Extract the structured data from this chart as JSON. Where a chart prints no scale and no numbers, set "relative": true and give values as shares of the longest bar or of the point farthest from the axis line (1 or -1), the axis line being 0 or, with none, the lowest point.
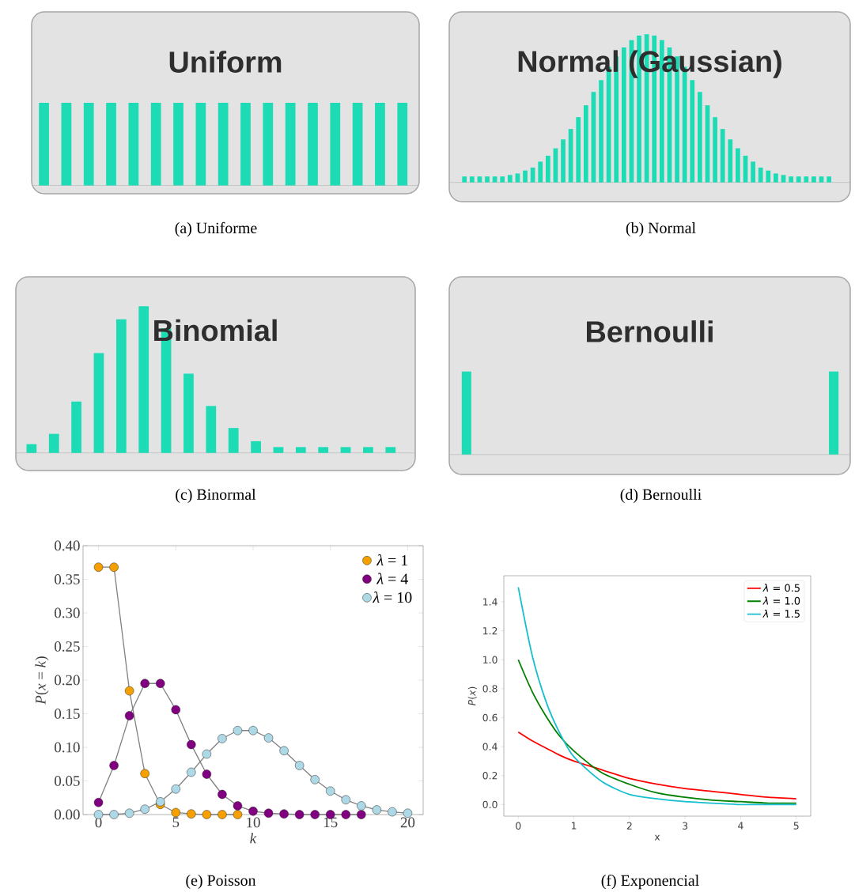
{
  "chart_data": [
    {
      "type": "bar",
      "relative": true,
      "title": "Uniform",
      "categories": [
        null,
        null,
        null,
        null,
        null,
        null,
        null,
        null,
        null,
        null,
        null,
        null,
        null,
        null,
        null,
        null,
        null
      ],
      "values": [
        1,
        1,
        1,
        1,
        1,
        1,
        1,
        1,
        1,
        1,
        1,
        1,
        1,
        1,
        1,
        1,
        1
      ],
      "color": "#1ddcb5",
      "annotations": [
        "(a) Uniforme"
      ]
    },
    {
      "type": "bar",
      "relative": true,
      "title": "Normal (Gaussian)",
      "categories": [
        null,
        null,
        null,
        null,
        null,
        null,
        null,
        null,
        null,
        null,
        null,
        null,
        null,
        null,
        null,
        null,
        null,
        null,
        null,
        null,
        null,
        null,
        null,
        null,
        null,
        null,
        null,
        null,
        null,
        null,
        null,
        null,
        null,
        null,
        null,
        null,
        null,
        null,
        null,
        null,
        null,
        null,
        null,
        null,
        null,
        null,
        null,
        null,
        null
      ],
      "values": [
        0.04,
        0.04,
        0.04,
        0.04,
        0.04,
        0.04,
        0.05,
        0.06,
        0.08,
        0.1,
        0.14,
        0.18,
        0.23,
        0.29,
        0.36,
        0.44,
        0.52,
        0.61,
        0.69,
        0.78,
        0.85,
        0.91,
        0.96,
        0.99,
        1,
        0.99,
        0.96,
        0.91,
        0.85,
        0.78,
        0.69,
        0.61,
        0.52,
        0.44,
        0.36,
        0.29,
        0.23,
        0.18,
        0.14,
        0.1,
        0.08,
        0.06,
        0.05,
        0.04,
        0.04,
        0.04,
        0.04,
        0.04,
        0.04
      ],
      "color": "#1ddcb5",
      "annotations": [
        "(b) Normal"
      ]
    },
    {
      "type": "bar",
      "relative": true,
      "title": "Binomial",
      "categories": [
        null,
        null,
        null,
        null,
        null,
        null,
        null,
        null,
        null,
        null,
        null,
        null,
        null,
        null,
        null,
        null,
        null
      ],
      "values": [
        0.06,
        0.13,
        0.35,
        0.68,
        0.91,
        1,
        0.85,
        0.54,
        0.32,
        0.17,
        0.08,
        0.04,
        0.04,
        0.04,
        0.04,
        0.04,
        0.04
      ],
      "color": "#1ddcb5",
      "annotations": [
        "(c) Binormal"
      ]
    },
    {
      "type": "bar",
      "relative": true,
      "title": "Bernoulli",
      "categories": [
        null,
        null
      ],
      "values": [
        1,
        1
      ],
      "color": "#1ddcb5",
      "annotations": [
        "(d) Bernoulli"
      ]
    },
    {
      "type": "line",
      "xlabel": "*k*",
      "ylabel": "*P*(*x* = *k*)",
      "x": [
        0,
        1,
        2,
        3,
        4,
        5,
        6,
        7,
        8,
        9,
        10,
        11,
        12,
        13,
        14,
        15,
        16,
        17,
        18,
        19,
        20
      ],
      "marker": "circle",
      "legend": "top right",
      "xlim": [
        -1,
        21
      ],
      "ylim": [
        0,
        0.4
      ],
      "xticks": [
        0,
        5,
        10,
        15,
        20
      ],
      "yticks": [
        {
          "value": 0,
          "label": "0.00"
        },
        {
          "value": 0.05,
          "label": "0.05"
        },
        {
          "value": 0.1,
          "label": "0.10"
        },
        {
          "value": 0.15,
          "label": "0.15"
        },
        {
          "value": 0.2,
          "label": "0.20"
        },
        {
          "value": 0.25,
          "label": "0.25"
        },
        {
          "value": 0.3,
          "label": "0.30"
        },
        {
          "value": 0.35,
          "label": "0.35"
        },
        {
          "value": 0.4,
          "label": "0.40"
        }
      ],
      "series": [
        {
          "name": "*λ* = 1",
          "color": "#f5a000",
          "x": [
            0,
            1,
            2,
            3,
            4,
            5,
            6,
            7,
            8,
            9
          ],
          "values": [
            0.368,
            0.368,
            0.184,
            0.061,
            0.015,
            0.003,
            0.001,
            0,
            0,
            0
          ]
        },
        {
          "name": "*λ* = 4",
          "color": "#800080",
          "x": [
            0,
            1,
            2,
            3,
            4,
            5,
            6,
            7,
            8,
            9,
            10,
            11,
            12,
            13,
            14,
            15,
            16,
            17
          ],
          "values": [
            0.018,
            0.073,
            0.147,
            0.195,
            0.195,
            0.156,
            0.104,
            0.06,
            0.03,
            0.013,
            0.005,
            0.002,
            0.001,
            0,
            0,
            0,
            0,
            0
          ]
        },
        {
          "name": "*λ* = 10",
          "color": "#add8e6",
          "values": [
            0,
            0,
            0.002,
            0.008,
            0.019,
            0.038,
            0.063,
            0.09,
            0.113,
            0.125,
            0.125,
            0.114,
            0.095,
            0.073,
            0.052,
            0.035,
            0.022,
            0.013,
            0.007,
            0.004,
            0.002
          ]
        }
      ],
      "annotations": [
        "(e) Poisson"
      ]
    },
    {
      "type": "line",
      "xlabel": "x",
      "ylabel": "*P*(*x*)",
      "x": [
        0,
        0.25,
        0.5,
        0.75,
        1,
        1.5,
        2,
        2.5,
        3,
        3.5,
        4,
        4.5,
        5
      ],
      "legend": "top right",
      "xlim": [
        -0.26,
        5.26
      ],
      "ylim": [
        -0.08,
        1.58
      ],
      "xticks": [
        0,
        1,
        2,
        3,
        4,
        5
      ],
      "yticks": [
        {
          "value": 0,
          "label": "0.0"
        },
        {
          "value": 0.2,
          "label": "0.2"
        },
        {
          "value": 0.4,
          "label": "0.4"
        },
        {
          "value": 0.6,
          "label": "0.6"
        },
        {
          "value": 0.8,
          "label": "0.8"
        },
        {
          "value": 1,
          "label": "1.0"
        },
        {
          "value": 1.2,
          "label": "1.2"
        },
        {
          "value": 1.4,
          "label": "1.4"
        }
      ],
      "series": [
        {
          "name": "*λ* = 0.5",
          "color": "#ff0000",
          "values": [
            0.5,
            0.44,
            0.39,
            0.34,
            0.3,
            0.24,
            0.18,
            0.14,
            0.11,
            0.09,
            0.07,
            0.05,
            0.04
          ]
        },
        {
          "name": "*λ* = 1.0",
          "color": "#008000",
          "values": [
            1,
            0.78,
            0.61,
            0.47,
            0.37,
            0.22,
            0.14,
            0.08,
            0.05,
            0.03,
            0.02,
            0.01,
            0.01
          ]
        },
        {
          "name": "*λ* = 1.5",
          "color": "#17becf",
          "values": [
            1.5,
            1.03,
            0.71,
            0.49,
            0.33,
            0.16,
            0.07,
            0.04,
            0.02,
            0.01,
            0,
            0,
            0
          ]
        }
      ],
      "annotations": [
        "(f) Exponencial"
      ]
    }
  ]
}
